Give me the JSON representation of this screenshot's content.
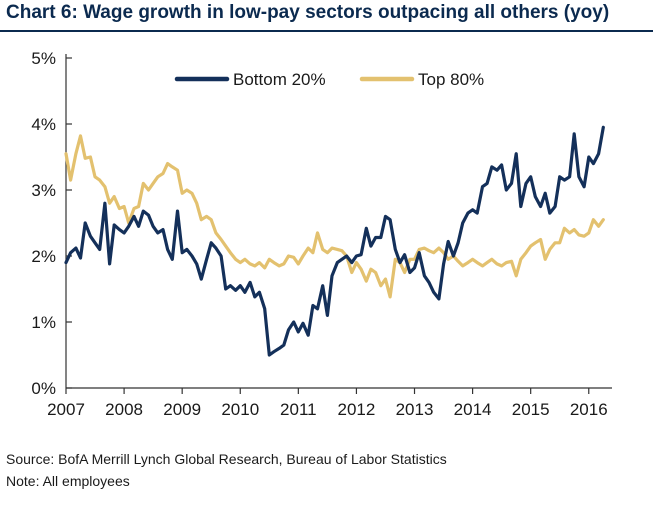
{
  "title": "Chart 6: Wage growth in low-pay sectors outpacing all others (yoy)",
  "source": "Source: BofA Merrill Lynch Global Research, Bureau of Labor Statistics",
  "note": "Note: All employees",
  "colors": {
    "title": "#0b2a4f",
    "bottom20": "#14305a",
    "top80": "#e3c16f",
    "axis": "#333333"
  },
  "chart_data": {
    "type": "line",
    "title": "Chart 6: Wage growth in low-pay sectors outpacing all others (yoy)",
    "xlabel": "",
    "ylabel": "",
    "xlim": [
      2007.0,
      2016.4
    ],
    "ylim": [
      0,
      5
    ],
    "x_ticks": [
      2007,
      2008,
      2009,
      2010,
      2011,
      2012,
      2013,
      2014,
      2015,
      2016
    ],
    "x_tick_labels": [
      "2007",
      "2008",
      "2009",
      "2010",
      "2011",
      "2012",
      "2013",
      "2014",
      "2015",
      "2016"
    ],
    "y_ticks": [
      0,
      1,
      2,
      3,
      4,
      5
    ],
    "y_tick_labels": [
      "0%",
      "1%",
      "2%",
      "3%",
      "4%",
      "5%"
    ],
    "legend_position": "top-center",
    "series": [
      {
        "name": "Bottom 20%",
        "color": "#14305a",
        "points": [
          [
            2007.0,
            1.9
          ],
          [
            2007.08,
            2.05
          ],
          [
            2007.17,
            2.12
          ],
          [
            2007.25,
            1.97
          ],
          [
            2007.33,
            2.5
          ],
          [
            2007.42,
            2.3
          ],
          [
            2007.5,
            2.2
          ],
          [
            2007.58,
            2.1
          ],
          [
            2007.67,
            2.8
          ],
          [
            2007.75,
            1.88
          ],
          [
            2007.83,
            2.47
          ],
          [
            2007.92,
            2.4
          ],
          [
            2008.0,
            2.35
          ],
          [
            2008.08,
            2.45
          ],
          [
            2008.17,
            2.6
          ],
          [
            2008.25,
            2.45
          ],
          [
            2008.33,
            2.68
          ],
          [
            2008.42,
            2.62
          ],
          [
            2008.5,
            2.45
          ],
          [
            2008.58,
            2.35
          ],
          [
            2008.67,
            2.4
          ],
          [
            2008.75,
            2.1
          ],
          [
            2008.83,
            1.95
          ],
          [
            2008.92,
            2.68
          ],
          [
            2009.0,
            2.05
          ],
          [
            2009.08,
            2.1
          ],
          [
            2009.17,
            2.0
          ],
          [
            2009.25,
            1.88
          ],
          [
            2009.33,
            1.65
          ],
          [
            2009.42,
            1.95
          ],
          [
            2009.5,
            2.2
          ],
          [
            2009.58,
            2.12
          ],
          [
            2009.67,
            2.0
          ],
          [
            2009.75,
            1.5
          ],
          [
            2009.83,
            1.55
          ],
          [
            2009.92,
            1.48
          ],
          [
            2010.0,
            1.55
          ],
          [
            2010.08,
            1.45
          ],
          [
            2010.17,
            1.6
          ],
          [
            2010.25,
            1.38
          ],
          [
            2010.33,
            1.45
          ],
          [
            2010.42,
            1.2
          ],
          [
            2010.5,
            0.5
          ],
          [
            2010.58,
            0.55
          ],
          [
            2010.67,
            0.6
          ],
          [
            2010.75,
            0.65
          ],
          [
            2010.83,
            0.88
          ],
          [
            2010.92,
            1.0
          ],
          [
            2011.0,
            0.85
          ],
          [
            2011.08,
            0.98
          ],
          [
            2011.17,
            0.8
          ],
          [
            2011.25,
            1.25
          ],
          [
            2011.33,
            1.2
          ],
          [
            2011.42,
            1.55
          ],
          [
            2011.5,
            1.1
          ],
          [
            2011.58,
            1.7
          ],
          [
            2011.67,
            1.9
          ],
          [
            2011.75,
            1.95
          ],
          [
            2011.83,
            2.0
          ],
          [
            2011.92,
            1.9
          ],
          [
            2012.0,
            2.0
          ],
          [
            2012.08,
            2.02
          ],
          [
            2012.17,
            2.42
          ],
          [
            2012.25,
            2.15
          ],
          [
            2012.33,
            2.28
          ],
          [
            2012.42,
            2.28
          ],
          [
            2012.5,
            2.6
          ],
          [
            2012.58,
            2.55
          ],
          [
            2012.67,
            2.1
          ],
          [
            2012.75,
            1.9
          ],
          [
            2012.83,
            2.02
          ],
          [
            2012.92,
            1.75
          ],
          [
            2013.0,
            1.82
          ],
          [
            2013.08,
            2.05
          ],
          [
            2013.17,
            1.7
          ],
          [
            2013.25,
            1.6
          ],
          [
            2013.33,
            1.45
          ],
          [
            2013.42,
            1.35
          ],
          [
            2013.5,
            1.88
          ],
          [
            2013.58,
            2.22
          ],
          [
            2013.67,
            2.0
          ],
          [
            2013.75,
            2.2
          ],
          [
            2013.83,
            2.5
          ],
          [
            2013.92,
            2.65
          ],
          [
            2014.0,
            2.7
          ],
          [
            2014.08,
            2.65
          ],
          [
            2014.17,
            3.05
          ],
          [
            2014.25,
            3.1
          ],
          [
            2014.33,
            3.35
          ],
          [
            2014.42,
            3.3
          ],
          [
            2014.5,
            3.38
          ],
          [
            2014.58,
            3.0
          ],
          [
            2014.67,
            3.1
          ],
          [
            2014.75,
            3.55
          ],
          [
            2014.83,
            2.75
          ],
          [
            2014.92,
            3.1
          ],
          [
            2015.0,
            3.2
          ],
          [
            2015.08,
            2.9
          ],
          [
            2015.17,
            2.75
          ],
          [
            2015.25,
            2.95
          ],
          [
            2015.33,
            2.65
          ],
          [
            2015.42,
            2.75
          ],
          [
            2015.5,
            3.2
          ],
          [
            2015.58,
            3.15
          ],
          [
            2015.67,
            3.2
          ],
          [
            2015.75,
            3.85
          ],
          [
            2015.83,
            3.2
          ],
          [
            2015.92,
            3.05
          ],
          [
            2016.0,
            3.5
          ],
          [
            2016.08,
            3.4
          ],
          [
            2016.17,
            3.55
          ],
          [
            2016.25,
            3.95
          ]
        ]
      },
      {
        "name": "Top 80%",
        "color": "#e3c16f",
        "points": [
          [
            2007.0,
            3.55
          ],
          [
            2007.08,
            3.15
          ],
          [
            2007.17,
            3.55
          ],
          [
            2007.25,
            3.82
          ],
          [
            2007.33,
            3.48
          ],
          [
            2007.42,
            3.5
          ],
          [
            2007.5,
            3.2
          ],
          [
            2007.58,
            3.15
          ],
          [
            2007.67,
            3.05
          ],
          [
            2007.75,
            2.8
          ],
          [
            2007.83,
            2.9
          ],
          [
            2007.92,
            2.72
          ],
          [
            2008.0,
            2.75
          ],
          [
            2008.08,
            2.5
          ],
          [
            2008.17,
            2.72
          ],
          [
            2008.25,
            2.75
          ],
          [
            2008.33,
            3.1
          ],
          [
            2008.42,
            3.0
          ],
          [
            2008.5,
            3.1
          ],
          [
            2008.58,
            3.2
          ],
          [
            2008.67,
            3.25
          ],
          [
            2008.75,
            3.4
          ],
          [
            2008.83,
            3.35
          ],
          [
            2008.92,
            3.3
          ],
          [
            2009.0,
            2.95
          ],
          [
            2009.08,
            3.0
          ],
          [
            2009.17,
            2.95
          ],
          [
            2009.25,
            2.8
          ],
          [
            2009.33,
            2.55
          ],
          [
            2009.42,
            2.6
          ],
          [
            2009.5,
            2.55
          ],
          [
            2009.58,
            2.35
          ],
          [
            2009.67,
            2.25
          ],
          [
            2009.75,
            2.15
          ],
          [
            2009.83,
            2.05
          ],
          [
            2009.92,
            1.95
          ],
          [
            2010.0,
            1.9
          ],
          [
            2010.08,
            1.95
          ],
          [
            2010.17,
            1.88
          ],
          [
            2010.25,
            1.85
          ],
          [
            2010.33,
            1.9
          ],
          [
            2010.42,
            1.82
          ],
          [
            2010.5,
            1.95
          ],
          [
            2010.58,
            1.9
          ],
          [
            2010.67,
            1.85
          ],
          [
            2010.75,
            1.88
          ],
          [
            2010.83,
            2.0
          ],
          [
            2010.92,
            1.98
          ],
          [
            2011.0,
            1.88
          ],
          [
            2011.08,
            2.0
          ],
          [
            2011.17,
            2.12
          ],
          [
            2011.25,
            2.05
          ],
          [
            2011.33,
            2.35
          ],
          [
            2011.42,
            2.1
          ],
          [
            2011.5,
            2.05
          ],
          [
            2011.58,
            2.12
          ],
          [
            2011.67,
            2.1
          ],
          [
            2011.75,
            2.08
          ],
          [
            2011.83,
            2.0
          ],
          [
            2011.92,
            1.75
          ],
          [
            2012.0,
            1.9
          ],
          [
            2012.08,
            1.8
          ],
          [
            2012.17,
            1.62
          ],
          [
            2012.25,
            1.8
          ],
          [
            2012.33,
            1.75
          ],
          [
            2012.42,
            1.55
          ],
          [
            2012.5,
            1.65
          ],
          [
            2012.58,
            1.38
          ],
          [
            2012.67,
            1.95
          ],
          [
            2012.75,
            1.9
          ],
          [
            2012.83,
            1.75
          ],
          [
            2012.92,
            1.95
          ],
          [
            2013.0,
            1.95
          ],
          [
            2013.08,
            2.1
          ],
          [
            2013.17,
            2.12
          ],
          [
            2013.25,
            2.08
          ],
          [
            2013.33,
            2.05
          ],
          [
            2013.42,
            2.12
          ],
          [
            2013.5,
            2.05
          ],
          [
            2013.58,
            1.95
          ],
          [
            2013.67,
            2.0
          ],
          [
            2013.75,
            1.92
          ],
          [
            2013.83,
            1.85
          ],
          [
            2013.92,
            1.9
          ],
          [
            2014.0,
            1.95
          ],
          [
            2014.08,
            1.9
          ],
          [
            2014.17,
            1.85
          ],
          [
            2014.25,
            1.9
          ],
          [
            2014.33,
            1.95
          ],
          [
            2014.42,
            1.88
          ],
          [
            2014.5,
            1.85
          ],
          [
            2014.58,
            1.9
          ],
          [
            2014.67,
            1.92
          ],
          [
            2014.75,
            1.7
          ],
          [
            2014.83,
            1.95
          ],
          [
            2014.92,
            2.05
          ],
          [
            2015.0,
            2.15
          ],
          [
            2015.08,
            2.2
          ],
          [
            2015.17,
            2.25
          ],
          [
            2015.25,
            1.95
          ],
          [
            2015.33,
            2.1
          ],
          [
            2015.42,
            2.2
          ],
          [
            2015.5,
            2.2
          ],
          [
            2015.58,
            2.42
          ],
          [
            2015.67,
            2.35
          ],
          [
            2015.75,
            2.4
          ],
          [
            2015.83,
            2.32
          ],
          [
            2015.92,
            2.3
          ],
          [
            2016.0,
            2.35
          ],
          [
            2016.08,
            2.55
          ],
          [
            2016.17,
            2.45
          ],
          [
            2016.25,
            2.55
          ]
        ]
      }
    ]
  }
}
